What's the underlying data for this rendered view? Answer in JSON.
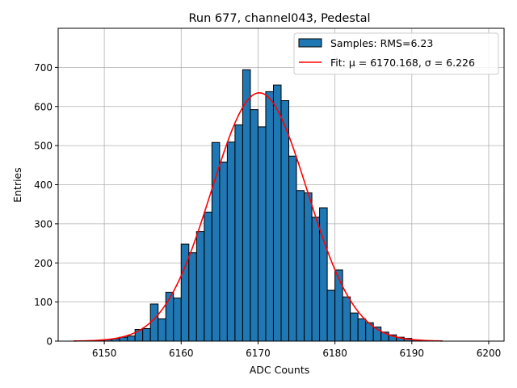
{
  "chart_data": {
    "type": "bar",
    "title": "Run 677, channel043, Pedestal",
    "xlabel": "ADC Counts",
    "ylabel": "Entries",
    "xlim": [
      6144,
      6202
    ],
    "ylim": [
      0,
      800
    ],
    "xticks": [
      6150,
      6160,
      6170,
      6180,
      6190,
      6200
    ],
    "yticks": [
      0,
      100,
      200,
      300,
      400,
      500,
      600,
      700
    ],
    "grid": true,
    "legend_position": "top-right",
    "histogram": {
      "name": "Samples: RMS=6.23",
      "color": "#1f77b4",
      "edgecolor": "#000000",
      "bin_edges": [
        6148,
        6149,
        6150,
        6151,
        6152,
        6153,
        6154,
        6155,
        6156,
        6157,
        6158,
        6159,
        6160,
        6161,
        6162,
        6163,
        6164,
        6165,
        6166,
        6167,
        6168,
        6169,
        6170,
        6171,
        6172,
        6173,
        6174,
        6175,
        6176,
        6177,
        6178,
        6179,
        6180,
        6181,
        6182,
        6183,
        6184,
        6185,
        6186,
        6187,
        6188,
        6189,
        6190,
        6191,
        6192
      ],
      "counts": [
        1,
        2,
        4,
        6,
        10,
        13,
        30,
        32,
        95,
        57,
        125,
        110,
        248,
        226,
        280,
        330,
        508,
        458,
        509,
        553,
        694,
        592,
        548,
        638,
        655,
        615,
        473,
        385,
        379,
        317,
        341,
        130,
        182,
        113,
        72,
        57,
        47,
        36,
        23,
        16,
        10,
        7,
        3,
        1
      ]
    },
    "fit": {
      "name": "Fit: μ = 6170.168, σ = 6.226",
      "color": "#ff0000",
      "mu": 6170.168,
      "sigma": 6.226,
      "amplitude": 635,
      "x_range": [
        6146,
        6194
      ]
    }
  }
}
